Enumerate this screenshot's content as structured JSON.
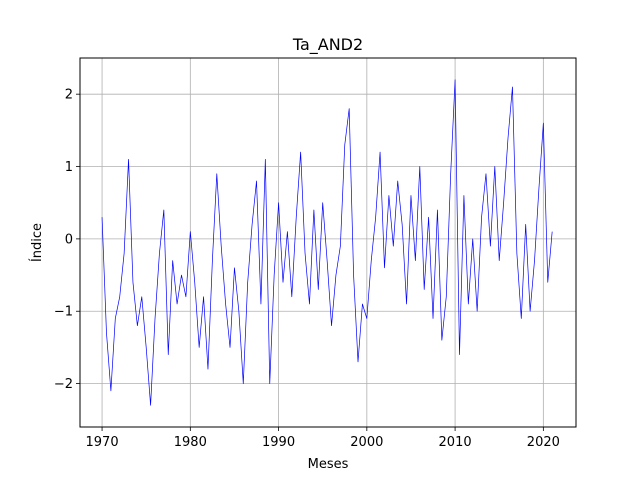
{
  "chart_data": {
    "type": "line",
    "title": "Ta_AND2",
    "xlabel": "Meses",
    "ylabel": "Índice",
    "xlim": [
      1967.5,
      2023.7
    ],
    "ylim": [
      -2.6,
      2.5
    ],
    "xticks": [
      1970,
      1980,
      1990,
      2000,
      2010,
      2020
    ],
    "xtick_labels": [
      "1970",
      "1980",
      "1990",
      "2000",
      "2010",
      "2020"
    ],
    "yticks": [
      -2,
      -1,
      0,
      1,
      2
    ],
    "ytick_labels": [
      "−2",
      "−1",
      "0",
      "1",
      "2"
    ],
    "grid": true,
    "series": [
      {
        "color": "#0000ff",
        "x": [
          1970.0,
          1970.5,
          1971.0,
          1971.5,
          1972.0,
          1972.5,
          1973.0,
          1973.5,
          1974.0,
          1974.5,
          1975.0,
          1975.5,
          1976.0,
          1976.5,
          1977.0,
          1977.5,
          1978.0,
          1978.5,
          1979.0,
          1979.5,
          1980.0,
          1980.5,
          1981.0,
          1981.5,
          1982.0,
          1982.5,
          1983.0,
          1983.5,
          1984.0,
          1984.5,
          1985.0,
          1985.5,
          1986.0,
          1986.5,
          1987.0,
          1987.5,
          1988.0,
          1988.5,
          1989.0,
          1989.5,
          1990.0,
          1990.5,
          1991.0,
          1991.5,
          1992.0,
          1992.5,
          1993.0,
          1993.5,
          1994.0,
          1994.5,
          1995.0,
          1995.5,
          1996.0,
          1996.5,
          1997.0,
          1997.5,
          1998.0,
          1998.5,
          1999.0,
          1999.5,
          2000.0,
          2000.5,
          2001.0,
          2001.5,
          2002.0,
          2002.5,
          2003.0,
          2003.5,
          2004.0,
          2004.5,
          2005.0,
          2005.5,
          2006.0,
          2006.5,
          2007.0,
          2007.5,
          2008.0,
          2008.5,
          2009.0,
          2009.5,
          2010.0,
          2010.5,
          2011.0,
          2011.5,
          2012.0,
          2012.5,
          2013.0,
          2013.5,
          2014.0,
          2014.5,
          2015.0,
          2015.5,
          2016.0,
          2016.5,
          2017.0,
          2017.5,
          2018.0,
          2018.5,
          2019.0,
          2019.5,
          2020.0,
          2020.5,
          2021.0
        ],
        "y": [
          0.3,
          -1.3,
          -2.1,
          -1.1,
          -0.8,
          -0.2,
          1.1,
          -0.6,
          -1.2,
          -0.8,
          -1.5,
          -2.3,
          -1.1,
          -0.2,
          0.4,
          -1.6,
          -0.3,
          -0.9,
          -0.5,
          -0.8,
          0.1,
          -0.6,
          -1.5,
          -0.8,
          -1.8,
          -0.3,
          0.9,
          -0.1,
          -0.9,
          -1.5,
          -0.4,
          -1.0,
          -2.0,
          -0.6,
          0.2,
          0.8,
          -0.9,
          1.1,
          -2.0,
          -0.5,
          0.5,
          -0.6,
          0.1,
          -0.8,
          0.3,
          1.2,
          -0.2,
          -0.9,
          0.4,
          -0.7,
          0.5,
          -0.3,
          -1.2,
          -0.5,
          -0.1,
          1.3,
          1.8,
          -0.5,
          -1.7,
          -0.9,
          -1.1,
          -0.3,
          0.3,
          1.2,
          -0.4,
          0.6,
          -0.1,
          0.8,
          0.2,
          -0.9,
          0.6,
          -0.3,
          1.0,
          -0.7,
          0.3,
          -1.1,
          0.4,
          -1.4,
          -0.8,
          0.9,
          2.2,
          -1.6,
          0.6,
          -0.9,
          0.0,
          -1.0,
          0.3,
          0.9,
          -0.1,
          1.0,
          -0.3,
          0.5,
          1.4,
          2.1,
          -0.2,
          -1.1,
          0.2,
          -1.0,
          -0.3,
          0.7,
          1.6,
          -0.6,
          0.1
        ]
      }
    ]
  }
}
